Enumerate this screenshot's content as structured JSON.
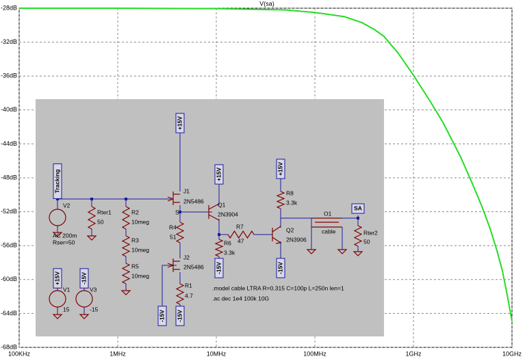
{
  "chart_data": {
    "type": "line",
    "log_x": true,
    "grid": true,
    "x": [
      100000,
      1000000,
      10000000,
      50000000,
      100000000,
      200000000,
      300000000,
      400000000,
      500000000,
      700000000,
      1000000000,
      1500000000,
      2000000000,
      3000000000,
      4000000000,
      5000000000,
      6000000000,
      7000000000,
      8000000000,
      9000000000,
      10000000000
    ],
    "series": [
      {
        "name": "V(sa)",
        "color": "#22dd22",
        "values": [
          -28,
          -28,
          -28.05,
          -28.2,
          -28.5,
          -29,
          -29.7,
          -30.5,
          -31.3,
          -33.3,
          -35.9,
          -39.1,
          -41.5,
          -45.5,
          -48.8,
          -51.5,
          -54,
          -56.5,
          -59,
          -62,
          -64.9
        ]
      }
    ],
    "xlim": [
      100000,
      10000000000
    ],
    "xticks": [
      {
        "value": 100000,
        "label": "100KHz"
      },
      {
        "value": 1000000,
        "label": "1MHz"
      },
      {
        "value": 10000000,
        "label": "10MHz"
      },
      {
        "value": 100000000,
        "label": "100MHz"
      },
      {
        "value": 1000000000,
        "label": "1GHz"
      },
      {
        "value": 10000000000,
        "label": "10GHz"
      }
    ],
    "ylim": [
      -68,
      -28
    ],
    "yticks": [
      {
        "value": -28,
        "label": "-28dB"
      },
      {
        "value": -32,
        "label": "-32dB"
      },
      {
        "value": -36,
        "label": "-36dB"
      },
      {
        "value": -40,
        "label": "-40dB"
      },
      {
        "value": -44,
        "label": "-44dB"
      },
      {
        "value": -48,
        "label": "-48dB"
      },
      {
        "value": -52,
        "label": "-52dB"
      },
      {
        "value": -56,
        "label": "-56dB"
      },
      {
        "value": -60,
        "label": "-60dB"
      },
      {
        "value": -64,
        "label": "-64dB"
      },
      {
        "value": -68,
        "label": "-68dB"
      }
    ]
  },
  "schematic": {
    "labels": [
      "Tracking",
      "V2",
      "AC 200m",
      "Rser=50",
      "Rter1",
      "50",
      "R2",
      "10meg",
      "R3",
      "10meg",
      "R5",
      "10meg",
      "J1",
      "2N5486",
      "+15V",
      "S",
      "R4",
      "51",
      "J2",
      "2N5486",
      "-15V",
      "R1",
      "4.7",
      "-15V",
      "Q1",
      "2N3904",
      "+15V",
      "R6",
      "3.3k",
      "-15V",
      "R7",
      "47",
      "Q2",
      "2N3906",
      "R8",
      "3.3k",
      "+15V",
      "-15V",
      "O1",
      "cable",
      "SA",
      "Rter2",
      "50",
      "V1",
      "+15V",
      "15",
      "V3",
      "-15V",
      "-15",
      ".model cable LTRA R=0.315 C=100p L=250n len=1",
      ".ac dec 1e4 100k 10G"
    ]
  }
}
